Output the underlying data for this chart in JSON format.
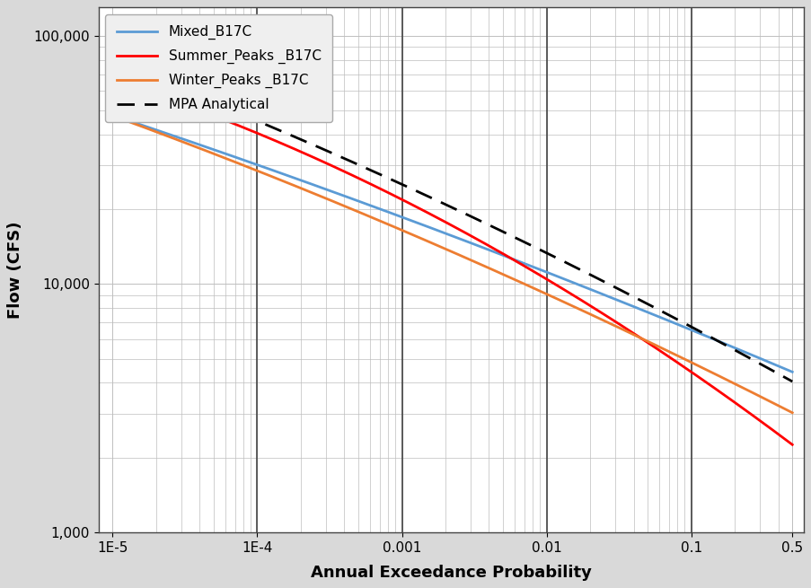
{
  "title": "",
  "xlabel": "Annual Exceedance Probability",
  "ylabel": "Flow (CFS)",
  "background_color": "#d9d9d9",
  "plot_bg_color": "#ffffff",
  "grid_color": "#bebebe",
  "legend_labels": [
    "Mixed_B17C",
    "Summer_Peaks _B17C",
    "Winter_Peaks _B17C",
    "MPA Analytical"
  ],
  "line_colors": [
    "#5b9bd5",
    "#ff0000",
    "#ed7d31",
    "#000000"
  ],
  "x_tick_positions": [
    0.5,
    0.1,
    0.01,
    0.001,
    0.0001,
    1e-05
  ],
  "x_tick_labels": [
    "0.5",
    "0.1",
    "0.01",
    "0.001",
    "1E-4",
    "1E-5"
  ],
  "y_tick_positions": [
    1000,
    10000,
    100000
  ],
  "y_tick_labels": [
    "1,000",
    "10,000",
    "100,000"
  ],
  "vline_positions": [
    0.1,
    0.01,
    0.001,
    0.0001
  ],
  "mixed_b17c": {
    "x": [
      0.5,
      0.2,
      0.1,
      0.04,
      0.02,
      0.01,
      0.005,
      0.002,
      0.001,
      0.0005,
      0.0002,
      0.0001,
      5e-05,
      2e-05,
      1e-05
    ],
    "y": [
      4200,
      5400,
      6900,
      8500,
      9800,
      11300,
      13000,
      15700,
      18200,
      21000,
      25500,
      30000,
      35000,
      42000,
      49000
    ]
  },
  "summer_b17c": {
    "x": [
      0.5,
      0.2,
      0.1,
      0.04,
      0.02,
      0.01,
      0.005,
      0.002,
      0.001,
      0.0005,
      0.0002,
      0.0001,
      5e-05,
      2e-05,
      1e-05
    ],
    "y": [
      2100,
      3200,
      4700,
      6800,
      8500,
      10800,
      13500,
      17500,
      21000,
      25500,
      33000,
      39000,
      47000,
      59000,
      70000
    ]
  },
  "winter_b17c": {
    "x": [
      0.5,
      0.2,
      0.1,
      0.04,
      0.02,
      0.01,
      0.005,
      0.002,
      0.001,
      0.0005,
      0.0002,
      0.0001,
      5e-05,
      2e-05,
      1e-05
    ],
    "y": [
      3000,
      3900,
      5000,
      6300,
      7400,
      9200,
      11000,
      13800,
      16500,
      19500,
      24000,
      28500,
      33500,
      41000,
      48000
    ]
  },
  "mpa_analytical": {
    "x": [
      0.5,
      0.2,
      0.1,
      0.04,
      0.02,
      0.01,
      0.005,
      0.002,
      0.001,
      0.0005,
      0.0002,
      0.0001,
      5e-05,
      2e-05,
      1e-05
    ],
    "y": [
      3900,
      5300,
      7000,
      9200,
      11200,
      13500,
      16300,
      20500,
      24500,
      29500,
      38000,
      45000,
      54000,
      67000,
      79000
    ]
  }
}
